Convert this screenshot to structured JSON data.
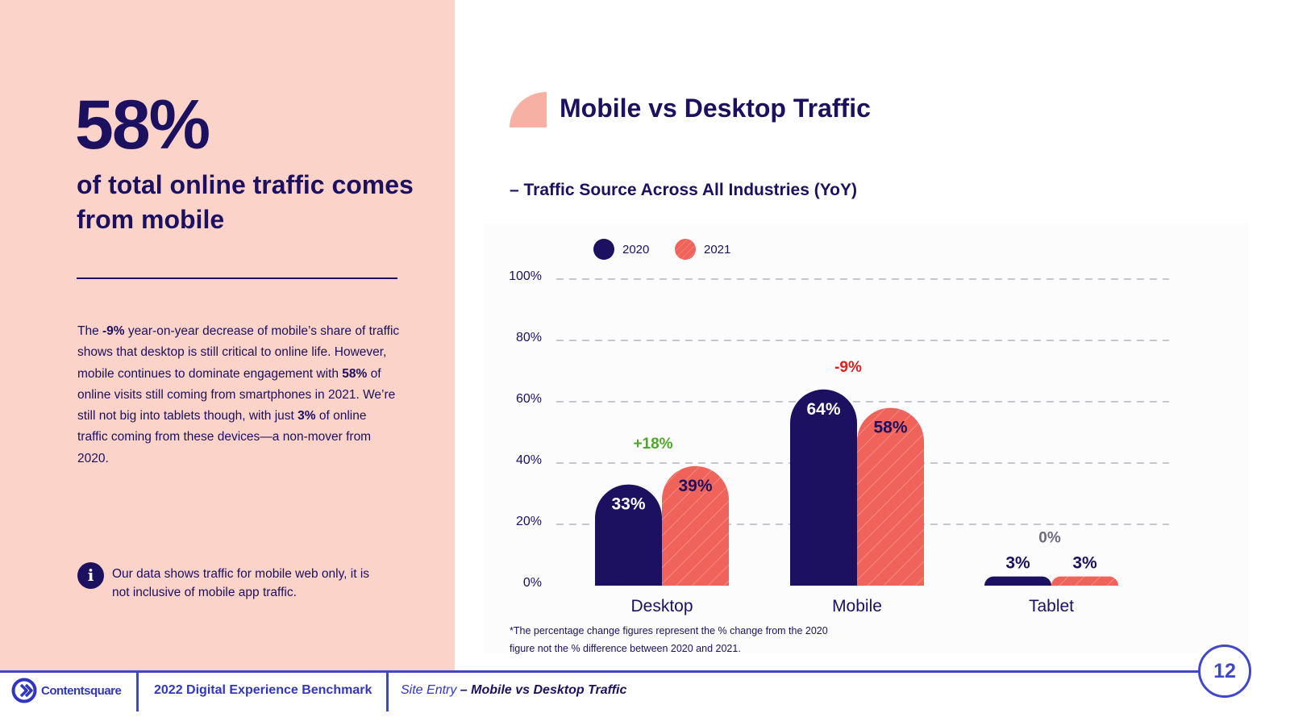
{
  "left_panel": {
    "big_stat": "58%",
    "stat_caption": "of total online traffic comes from mobile",
    "paragraph": [
      {
        "text": "The ",
        "bold": false
      },
      {
        "text": "-9%",
        "bold": true
      },
      {
        "text": " year-on-year decrease of mobile’s share of traffic shows that desktop is still critical to online life.  However, mobile continues to dominate engagement with ",
        "bold": false
      },
      {
        "text": "58%",
        "bold": true
      },
      {
        "text": " of online visits still coming from smartphones in 2021. We’re still not big into tablets though, with just ",
        "bold": false
      },
      {
        "text": "3%",
        "bold": true
      },
      {
        "text": " of online traffic coming from these devices—a non-mover from 2020.",
        "bold": false
      }
    ],
    "info_icon_glyph": "i",
    "info_text": "Our data shows traffic for mobile web only, it is not inclusive of mobile app traffic."
  },
  "header": {
    "title": "Mobile vs Desktop Traffic",
    "subtitle": "– Traffic Source Across All Industries (YoY)"
  },
  "chart_data": {
    "type": "bar",
    "categories": [
      "Desktop",
      "Mobile",
      "Tablet"
    ],
    "series": [
      {
        "name": "2020",
        "values": [
          33,
          64,
          3
        ],
        "color": "#1c1060"
      },
      {
        "name": "2021",
        "values": [
          39,
          58,
          3
        ],
        "color": "#ef635a"
      }
    ],
    "data_labels": {
      "2020": [
        "33%",
        "64%",
        "3%"
      ],
      "2021": [
        "39%",
        "58%",
        "3%"
      ]
    },
    "changes": [
      {
        "label": "+18%",
        "color": "#4ca82a"
      },
      {
        "label": "-9%",
        "color": "#e0211b"
      },
      {
        "label": "0%",
        "color": "#6b6a85"
      }
    ],
    "ylim": [
      0,
      100
    ],
    "yticks": [
      0,
      20,
      40,
      60,
      80,
      100
    ],
    "ytick_labels": [
      "0%",
      "20%",
      "40%",
      "60%",
      "80%",
      "100%"
    ],
    "grid": true,
    "legend": "top-left"
  },
  "footnote": "*The percentage change figures represent the % change from the 2020 figure not the % difference between 2020 and 2021.",
  "footer": {
    "logo_text": "Contentsquare",
    "report_name": "2022 Digital Experience Benchmark",
    "breadcrumb_section": "Site Entry",
    "breadcrumb_current": " – Mobile vs Desktop Traffic",
    "page_number": "12"
  }
}
